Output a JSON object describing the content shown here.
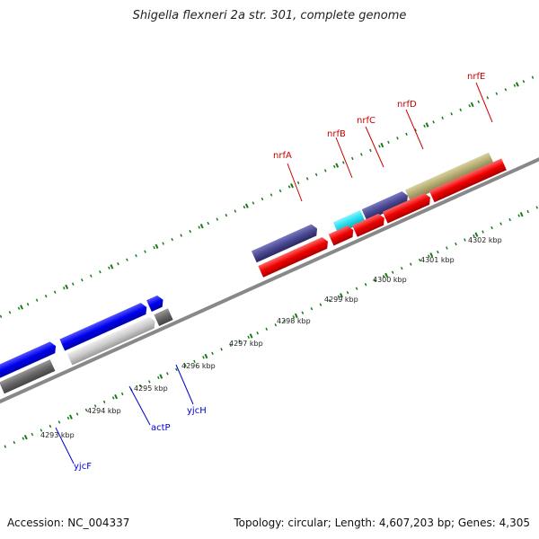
{
  "title": "Shigella flexneri 2a str. 301, complete genome",
  "footer": {
    "accession": "Accession: NC_004337",
    "summary": "Topology: circular; Length: 4,607,203 bp; Genes: 4,305"
  },
  "scale_labels": [
    "4293 kbp",
    "4294 kbp",
    "4295 kbp",
    "4296 kbp",
    "4297 kbp",
    "4298 kbp",
    "4299 kbp",
    "4300 kbp",
    "4301 kbp",
    "4302 kbp"
  ],
  "genes": [
    {
      "name": "nrfA",
      "color": "#cc0000"
    },
    {
      "name": "nrfB",
      "color": "#cc0000"
    },
    {
      "name": "nrfC",
      "color": "#cc0000"
    },
    {
      "name": "nrfD",
      "color": "#cc0000"
    },
    {
      "name": "nrfE",
      "color": "#cc0000"
    },
    {
      "name": "yjcF",
      "color": "#0000cc"
    },
    {
      "name": "actP",
      "color": "#0000cc"
    },
    {
      "name": "yjcH",
      "color": "#0000cc"
    }
  ],
  "colors": {
    "tick": "#1a7a1a",
    "backbone": "#888888",
    "red_feature": "#ee0000",
    "blue_feature": "#0000ee",
    "purple_feature": "#4a4890",
    "cyan_feature": "#22ddee",
    "olive_feature": "#b2aa70",
    "gray_feature": "#666666",
    "light_gray_feature": "#cccccc"
  }
}
